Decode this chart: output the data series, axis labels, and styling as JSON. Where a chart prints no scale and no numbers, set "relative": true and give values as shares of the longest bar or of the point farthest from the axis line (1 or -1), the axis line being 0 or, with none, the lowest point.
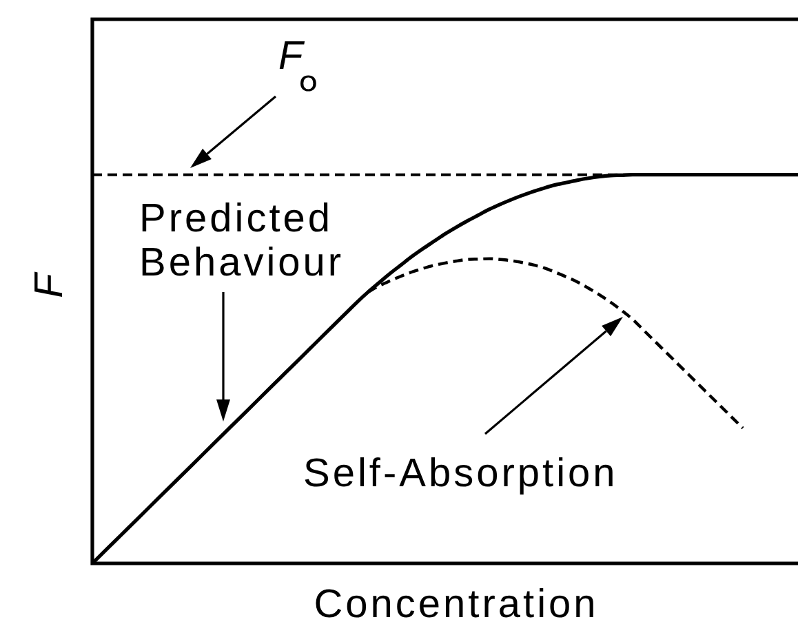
{
  "chart_data": {
    "type": "line",
    "xlabel": "Concentration",
    "ylabel": "F",
    "relative": true,
    "legend": false,
    "marker": "none",
    "categories": [
      null,
      null,
      null,
      null,
      null,
      null,
      null,
      null,
      null,
      null,
      null,
      null,
      null,
      null,
      null,
      null,
      null,
      null,
      null,
      null,
      null,
      null,
      null,
      null,
      null,
      null,
      null,
      null,
      null,
      null,
      null,
      null,
      null,
      null,
      null,
      null,
      null,
      null,
      null,
      null,
      null,
      null,
      null,
      null,
      null,
      null,
      null,
      null,
      null,
      null,
      null,
      null,
      null,
      null,
      null,
      null,
      null,
      null,
      null,
      null,
      null,
      null,
      null,
      null,
      null
    ],
    "series": [
      {
        "color": "#000000",
        "line_style": "solid",
        "values": [
          0,
          0.028,
          0.056,
          0.084,
          0.112,
          0.14,
          0.168,
          0.196,
          0.224,
          0.252,
          0.28,
          0.308,
          0.336,
          0.364,
          0.392,
          0.42,
          0.448,
          0.476,
          0.504,
          0.532,
          0.56,
          0.588,
          0.616,
          0.644,
          0.672,
          0.698,
          0.722,
          0.746,
          0.768,
          0.79,
          0.81,
          0.829,
          0.848,
          0.865,
          0.881,
          0.896,
          0.911,
          0.924,
          0.936,
          0.947,
          0.957,
          0.966,
          0.974,
          0.98,
          0.986,
          0.991,
          0.995,
          0.998,
          0.999,
          1,
          1,
          1,
          1,
          1,
          1,
          1,
          1,
          1,
          1,
          1,
          1,
          1,
          1,
          1,
          1
        ]
      },
      {
        "color": "#000000",
        "line_style": "dashed",
        "values": [
          null,
          null,
          null,
          null,
          null,
          null,
          null,
          null,
          null,
          null,
          null,
          null,
          null,
          null,
          null,
          null,
          null,
          null,
          null,
          null,
          null,
          null,
          null,
          null,
          null,
          0.698,
          0.714,
          0.727,
          0.739,
          0.75,
          0.759,
          0.767,
          0.773,
          0.778,
          0.782,
          0.783,
          0.784,
          0.782,
          0.779,
          0.774,
          0.768,
          0.76,
          0.749,
          0.737,
          0.724,
          0.708,
          0.691,
          0.672,
          0.651,
          0.628,
          0.6,
          0.572,
          0.544,
          0.516,
          0.488,
          0.46,
          0.432,
          0.404,
          0.376,
          0.348,
          null,
          null,
          null,
          null,
          null
        ]
      }
    ],
    "ref_lines": [
      {
        "axis": "y",
        "value": 1,
        "label": "Fₒ",
        "line_style": "dashed",
        "color": "#000000"
      }
    ],
    "annotations": [
      "Predicted Behaviour",
      "Self-Absorption"
    ]
  }
}
